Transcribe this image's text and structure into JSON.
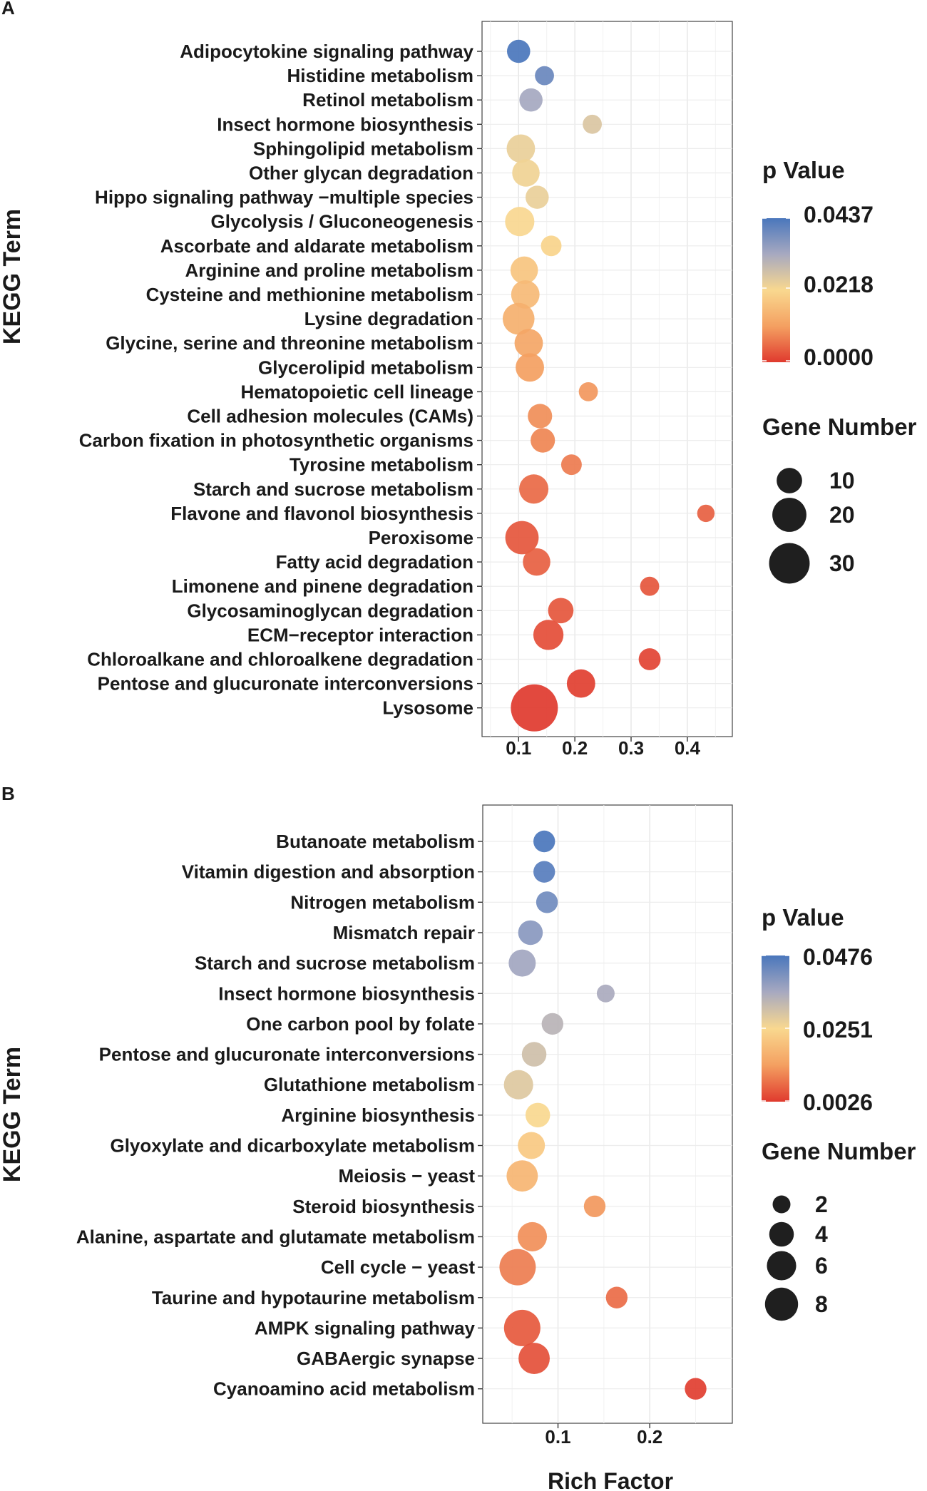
{
  "chart_data": [
    {
      "panel": "A",
      "type": "scatter",
      "ylabel": "KEGG Term",
      "xlabel": "",
      "xticks": [
        0.1,
        0.2,
        0.3,
        0.4
      ],
      "xtick_labels": [
        "0.1",
        "0.2",
        "0.3",
        "0.4"
      ],
      "xlim": [
        0.035,
        0.48
      ],
      "grid": true,
      "color_legend": {
        "title": "p Value",
        "min": 0.0,
        "max": 0.0437,
        "labels": [
          "0.0437",
          "0.0218",
          "0.0000"
        ]
      },
      "size_legend": {
        "title": "Gene Number",
        "values": [
          10,
          20,
          30
        ],
        "labels": [
          "10",
          "20",
          "30"
        ]
      },
      "size_domain": [
        1,
        42
      ],
      "terms": [
        {
          "term": "Adipocytokine signaling pathway",
          "rich_factor": 0.1,
          "gene_number": 8,
          "p_value": 0.0437
        },
        {
          "term": "Histidine metabolism",
          "rich_factor": 0.146,
          "gene_number": 5,
          "p_value": 0.04
        },
        {
          "term": "Retinol metabolism",
          "rich_factor": 0.122,
          "gene_number": 8,
          "p_value": 0.033
        },
        {
          "term": "Insect hormone biosynthesis",
          "rich_factor": 0.231,
          "gene_number": 5,
          "p_value": 0.026
        },
        {
          "term": "Sphingolipid metabolism",
          "rich_factor": 0.104,
          "gene_number": 13,
          "p_value": 0.024
        },
        {
          "term": "Other glycan degradation",
          "rich_factor": 0.113,
          "gene_number": 12,
          "p_value": 0.023
        },
        {
          "term": "Hippo signaling pathway −multiple species",
          "rich_factor": 0.133,
          "gene_number": 8,
          "p_value": 0.024
        },
        {
          "term": "Glycolysis / Gluconeogenesis",
          "rich_factor": 0.102,
          "gene_number": 14,
          "p_value": 0.022
        },
        {
          "term": "Ascorbate and aldarate metabolism",
          "rich_factor": 0.158,
          "gene_number": 6,
          "p_value": 0.021
        },
        {
          "term": "Arginine and proline metabolism",
          "rich_factor": 0.11,
          "gene_number": 12,
          "p_value": 0.018
        },
        {
          "term": "Cysteine and methionine metabolism",
          "rich_factor": 0.112,
          "gene_number": 13,
          "p_value": 0.016
        },
        {
          "term": "Lysine degradation",
          "rich_factor": 0.1,
          "gene_number": 17,
          "p_value": 0.014
        },
        {
          "term": "Glycine, serine and threonine metabolism",
          "rich_factor": 0.118,
          "gene_number": 13,
          "p_value": 0.012
        },
        {
          "term": "Glycerolipid metabolism",
          "rich_factor": 0.12,
          "gene_number": 13,
          "p_value": 0.011
        },
        {
          "term": "Hematopoietic cell lineage",
          "rich_factor": 0.224,
          "gene_number": 5,
          "p_value": 0.01
        },
        {
          "term": "Cell adhesion molecules (CAMs)",
          "rich_factor": 0.138,
          "gene_number": 9,
          "p_value": 0.009
        },
        {
          "term": "Carbon fixation in photosynthetic organisms",
          "rich_factor": 0.143,
          "gene_number": 9,
          "p_value": 0.008
        },
        {
          "term": "Tyrosine metabolism",
          "rich_factor": 0.194,
          "gene_number": 6,
          "p_value": 0.007
        },
        {
          "term": "Starch and sucrose metabolism",
          "rich_factor": 0.127,
          "gene_number": 14,
          "p_value": 0.005
        },
        {
          "term": "Flavone and flavonol biosynthesis",
          "rich_factor": 0.433,
          "gene_number": 4,
          "p_value": 0.004
        },
        {
          "term": "Peroxisome",
          "rich_factor": 0.106,
          "gene_number": 19,
          "p_value": 0.003
        },
        {
          "term": "Fatty acid degradation",
          "rich_factor": 0.132,
          "gene_number": 12,
          "p_value": 0.004
        },
        {
          "term": "Limonene and pinene degradation",
          "rich_factor": 0.333,
          "gene_number": 5,
          "p_value": 0.003
        },
        {
          "term": "Glycosaminoglycan degradation",
          "rich_factor": 0.175,
          "gene_number": 10,
          "p_value": 0.003
        },
        {
          "term": "ECM−receptor interaction",
          "rich_factor": 0.153,
          "gene_number": 15,
          "p_value": 0.002
        },
        {
          "term": "Chloroalkane and chloroalkene degradation",
          "rich_factor": 0.333,
          "gene_number": 7,
          "p_value": 0.001
        },
        {
          "term": "Pentose and glucuronate interconversions",
          "rich_factor": 0.211,
          "gene_number": 13,
          "p_value": 0.0005
        },
        {
          "term": "Lysosome",
          "rich_factor": 0.128,
          "gene_number": 42,
          "p_value": 0.0
        }
      ]
    },
    {
      "panel": "B",
      "type": "scatter",
      "ylabel": "KEGG Term",
      "xlabel": "Rich Factor",
      "xticks": [
        0.1,
        0.2
      ],
      "xtick_labels": [
        "0.1",
        "0.2"
      ],
      "xlim": [
        0.018,
        0.29
      ],
      "grid": true,
      "color_legend": {
        "title": "p Value",
        "min": 0.0026,
        "max": 0.0476,
        "labels": [
          "0.0476",
          "0.0251",
          "0.0026"
        ]
      },
      "size_legend": {
        "title": "Gene Number",
        "values": [
          2,
          4,
          6,
          8
        ],
        "labels": [
          "2",
          "4",
          "6",
          "8"
        ]
      },
      "size_domain": [
        1,
        10
      ],
      "terms": [
        {
          "term": "Butanoate metabolism",
          "rich_factor": 0.085,
          "gene_number": 3,
          "p_value": 0.0476
        },
        {
          "term": "Vitamin digestion and absorption",
          "rich_factor": 0.085,
          "gene_number": 3,
          "p_value": 0.046
        },
        {
          "term": "Nitrogen metabolism",
          "rich_factor": 0.088,
          "gene_number": 3,
          "p_value": 0.043
        },
        {
          "term": "Mismatch repair",
          "rich_factor": 0.07,
          "gene_number": 4,
          "p_value": 0.04
        },
        {
          "term": "Starch and sucrose metabolism",
          "rich_factor": 0.061,
          "gene_number": 5,
          "p_value": 0.037
        },
        {
          "term": "Insect hormone biosynthesis",
          "rich_factor": 0.152,
          "gene_number": 2,
          "p_value": 0.036
        },
        {
          "term": "One carbon pool by folate",
          "rich_factor": 0.094,
          "gene_number": 3,
          "p_value": 0.034
        },
        {
          "term": "Pentose and glucuronate interconversions",
          "rich_factor": 0.074,
          "gene_number": 4,
          "p_value": 0.031
        },
        {
          "term": "Glutathione metabolism",
          "rich_factor": 0.057,
          "gene_number": 6,
          "p_value": 0.029
        },
        {
          "term": "Arginine biosynthesis",
          "rich_factor": 0.078,
          "gene_number": 4,
          "p_value": 0.025
        },
        {
          "term": "Glyoxylate and dicarboxylate metabolism",
          "rich_factor": 0.071,
          "gene_number": 5,
          "p_value": 0.022
        },
        {
          "term": "Meiosis − yeast",
          "rich_factor": 0.061,
          "gene_number": 7,
          "p_value": 0.018
        },
        {
          "term": "Steroid biosynthesis",
          "rich_factor": 0.14,
          "gene_number": 3,
          "p_value": 0.013
        },
        {
          "term": "Alanine, aspartate and glutamate metabolism",
          "rich_factor": 0.072,
          "gene_number": 6,
          "p_value": 0.012
        },
        {
          "term": "Cell cycle − yeast",
          "rich_factor": 0.056,
          "gene_number": 10,
          "p_value": 0.01
        },
        {
          "term": "Taurine and hypotaurine metabolism",
          "rich_factor": 0.164,
          "gene_number": 3,
          "p_value": 0.008
        },
        {
          "term": "AMPK signaling pathway",
          "rich_factor": 0.061,
          "gene_number": 10,
          "p_value": 0.006
        },
        {
          "term": "GABAergic synapse",
          "rich_factor": 0.074,
          "gene_number": 7,
          "p_value": 0.005
        },
        {
          "term": "Cyanoamino acid metabolism",
          "rich_factor": 0.25,
          "gene_number": 3,
          "p_value": 0.003
        }
      ]
    }
  ]
}
